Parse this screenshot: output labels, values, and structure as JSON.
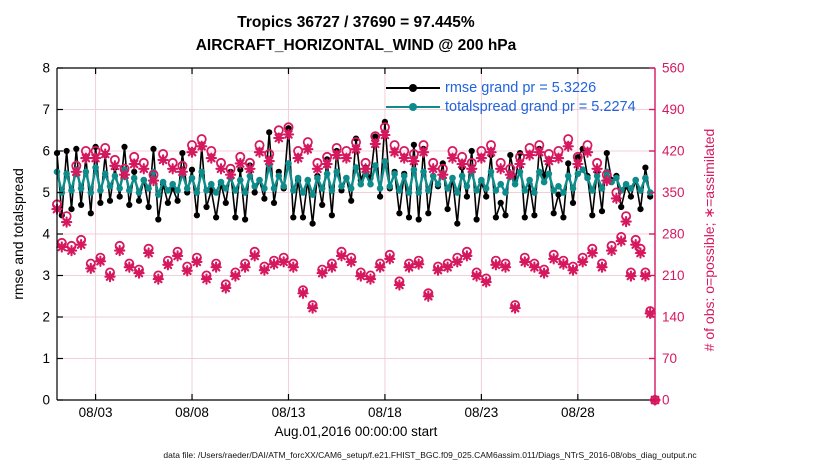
{
  "title": {
    "line1": "Tropics 36727 / 37690 = 97.445%",
    "line2": "AIRCRAFT_HORIZONTAL_WIND @ 200 hPa"
  },
  "footer": {
    "data_file": "data file: /Users/raeder/DAI/ATM_forcXX/CAM6_setup/f.e21.FHIST_BGC.f09_025.CAM6assim.011/Diags_NTrS_2016-08/obs_diag_output.nc"
  },
  "chart_data": {
    "type": "line",
    "title": "Tropics 36727 / 37690 = 97.445% — AIRCRAFT_HORIZONTAL_WIND @ 200 hPa",
    "xlabel": "Aug.01,2016 00:00:00 start",
    "ylabel_left": "rmse and totalspread",
    "ylabel_right": "# of obs: o=possible; ∗=assimilated",
    "x_days": 31,
    "xticks": [
      {
        "t": 2,
        "label": "08/03"
      },
      {
        "t": 7,
        "label": "08/08"
      },
      {
        "t": 12,
        "label": "08/13"
      },
      {
        "t": 17,
        "label": "08/18"
      },
      {
        "t": 22,
        "label": "08/23"
      },
      {
        "t": 27,
        "label": "08/28"
      }
    ],
    "ylim_left": [
      0,
      8
    ],
    "yticks_left": [
      0,
      1,
      2,
      3,
      4,
      5,
      6,
      7,
      8
    ],
    "ylim_right": [
      0,
      560
    ],
    "yticks_right": [
      0,
      70,
      140,
      210,
      280,
      350,
      420,
      490,
      560
    ],
    "grid": true,
    "legend_position": "top-right-inside",
    "legend": [
      {
        "label": "rmse grand pr = 5.3226",
        "series": "rmse"
      },
      {
        "label": "totalspread grand pr = 5.2274",
        "series": "totalspread"
      }
    ],
    "stats": {
      "assimilated_total": 36727,
      "possible_total": 37690,
      "percent": 97.445,
      "rmse_grand": 5.3226,
      "totalspread_grand": 5.2274
    },
    "colors": {
      "rmse": "#000000",
      "totalspread": "#0e8c8c",
      "obs": "#d6185f",
      "grid": "#f2cfd8",
      "axis": "#000000",
      "legend_text": "#2163e0"
    },
    "series": {
      "t_start": 0,
      "t_step": 0.25,
      "rmse": [
        5.95,
        4.45,
        6.0,
        4.6,
        6.05,
        4.7,
        5.85,
        4.5,
        6.1,
        4.75,
        5.9,
        4.8,
        5.6,
        4.9,
        6.1,
        4.7,
        5.5,
        4.8,
        5.3,
        4.65,
        6.05,
        4.35,
        5.2,
        4.75,
        5.1,
        4.8,
        5.95,
        5.0,
        5.55,
        4.45,
        6.1,
        4.65,
        5.05,
        4.4,
        5.2,
        4.75,
        5.5,
        4.4,
        5.55,
        4.35,
        5.65,
        5.0,
        5.3,
        4.85,
        6.45,
        4.75,
        5.5,
        5.1,
        6.55,
        4.4,
        5.3,
        4.4,
        5.3,
        4.25,
        5.4,
        4.7,
        5.8,
        4.45,
        6.0,
        5.05,
        5.35,
        4.8,
        6.3,
        5.3,
        5.6,
        5.35,
        6.35,
        4.9,
        6.7,
        5.1,
        5.5,
        4.5,
        5.45,
        4.4,
        6.15,
        4.35,
        6.05,
        4.5,
        5.4,
        5.15,
        5.7,
        4.6,
        5.35,
        4.25,
        5.6,
        4.9,
        6.0,
        4.35,
        5.25,
        4.9,
        5.9,
        4.4,
        4.75,
        4.45,
        5.9,
        5.3,
        5.95,
        4.4,
        5.2,
        4.45,
        6.05,
        5.4,
        5.8,
        4.5,
        4.95,
        4.4,
        5.7,
        4.75,
        5.85,
        6.05,
        5.4,
        4.45,
        5.5,
        4.55,
        5.95,
        5.3,
        5.4,
        4.65,
        5.15,
        4.9,
        5.3,
        4.6,
        5.6,
        4.9
      ],
      "totalspread": [
        5.5,
        5.0,
        5.45,
        5.05,
        5.55,
        5.1,
        5.5,
        5.0,
        5.6,
        5.05,
        5.45,
        5.15,
        5.4,
        5.1,
        5.55,
        5.05,
        5.35,
        5.0,
        5.3,
        5.1,
        5.5,
        4.95,
        5.25,
        5.05,
        5.2,
        5.05,
        5.45,
        5.1,
        5.35,
        5.0,
        5.5,
        5.05,
        5.2,
        5.0,
        5.25,
        5.1,
        5.35,
        5.05,
        5.3,
        5.0,
        5.4,
        5.15,
        5.3,
        5.1,
        5.65,
        5.1,
        5.4,
        5.15,
        5.7,
        5.05,
        5.35,
        5.0,
        5.3,
        4.95,
        5.35,
        5.1,
        5.45,
        5.05,
        5.5,
        5.15,
        5.35,
        5.1,
        5.6,
        5.2,
        5.45,
        5.2,
        5.65,
        5.1,
        5.75,
        5.15,
        5.45,
        5.05,
        5.4,
        5.0,
        5.55,
        5.0,
        5.5,
        5.05,
        5.4,
        5.2,
        5.45,
        5.1,
        5.35,
        5.0,
        5.4,
        5.15,
        5.5,
        5.05,
        5.3,
        5.1,
        5.5,
        5.05,
        5.2,
        5.0,
        5.45,
        5.2,
        5.5,
        5.05,
        5.3,
        5.0,
        5.5,
        5.25,
        5.45,
        5.05,
        5.15,
        5.0,
        5.4,
        5.1,
        5.45,
        5.55,
        5.35,
        5.05,
        5.4,
        5.1,
        5.5,
        5.25,
        5.35,
        5.05,
        5.2,
        5.1,
        5.3,
        5.05,
        5.35,
        5.0
      ],
      "possible": [
        330,
        265,
        310,
        260,
        395,
        270,
        420,
        230,
        420,
        240,
        425,
        215,
        405,
        260,
        390,
        230,
        410,
        220,
        400,
        255,
        380,
        210,
        415,
        235,
        400,
        250,
        395,
        225,
        430,
        240,
        440,
        210,
        420,
        230,
        400,
        195,
        390,
        215,
        410,
        230,
        400,
        250,
        430,
        225,
        415,
        235,
        455,
        240,
        460,
        230,
        420,
        185,
        435,
        160,
        400,
        220,
        410,
        230,
        425,
        250,
        420,
        240,
        435,
        215,
        400,
        210,
        445,
        230,
        460,
        245,
        430,
        200,
        420,
        230,
        415,
        235,
        430,
        180,
        400,
        225,
        390,
        230,
        420,
        240,
        410,
        250,
        400,
        215,
        420,
        205,
        430,
        235,
        400,
        230,
        390,
        160,
        410,
        240,
        425,
        230,
        430,
        220,
        415,
        245,
        420,
        235,
        440,
        225,
        410,
        240,
        430,
        255,
        400,
        230,
        380,
        260,
        350,
        275,
        310,
        215,
        270,
        255,
        215,
        150,
        0
      ],
      "assimilated": [
        322,
        258,
        300,
        252,
        385,
        262,
        408,
        222,
        408,
        234,
        415,
        208,
        395,
        252,
        380,
        224,
        398,
        214,
        390,
        248,
        370,
        204,
        405,
        228,
        390,
        243,
        385,
        218,
        418,
        233,
        428,
        204,
        408,
        224,
        390,
        189,
        380,
        209,
        399,
        224,
        390,
        243,
        418,
        219,
        403,
        229,
        442,
        233,
        448,
        224,
        408,
        180,
        423,
        155,
        390,
        214,
        398,
        224,
        413,
        243,
        408,
        233,
        423,
        209,
        390,
        204,
        432,
        224,
        447,
        238,
        418,
        194,
        408,
        224,
        403,
        229,
        418,
        175,
        390,
        219,
        380,
        224,
        408,
        233,
        398,
        243,
        390,
        209,
        408,
        199,
        418,
        228,
        390,
        224,
        380,
        155,
        398,
        233,
        413,
        224,
        418,
        214,
        403,
        238,
        408,
        229,
        428,
        219,
        398,
        233,
        418,
        248,
        390,
        224,
        370,
        252,
        340,
        268,
        301,
        209,
        262,
        248,
        209,
        146,
        0
      ]
    }
  }
}
